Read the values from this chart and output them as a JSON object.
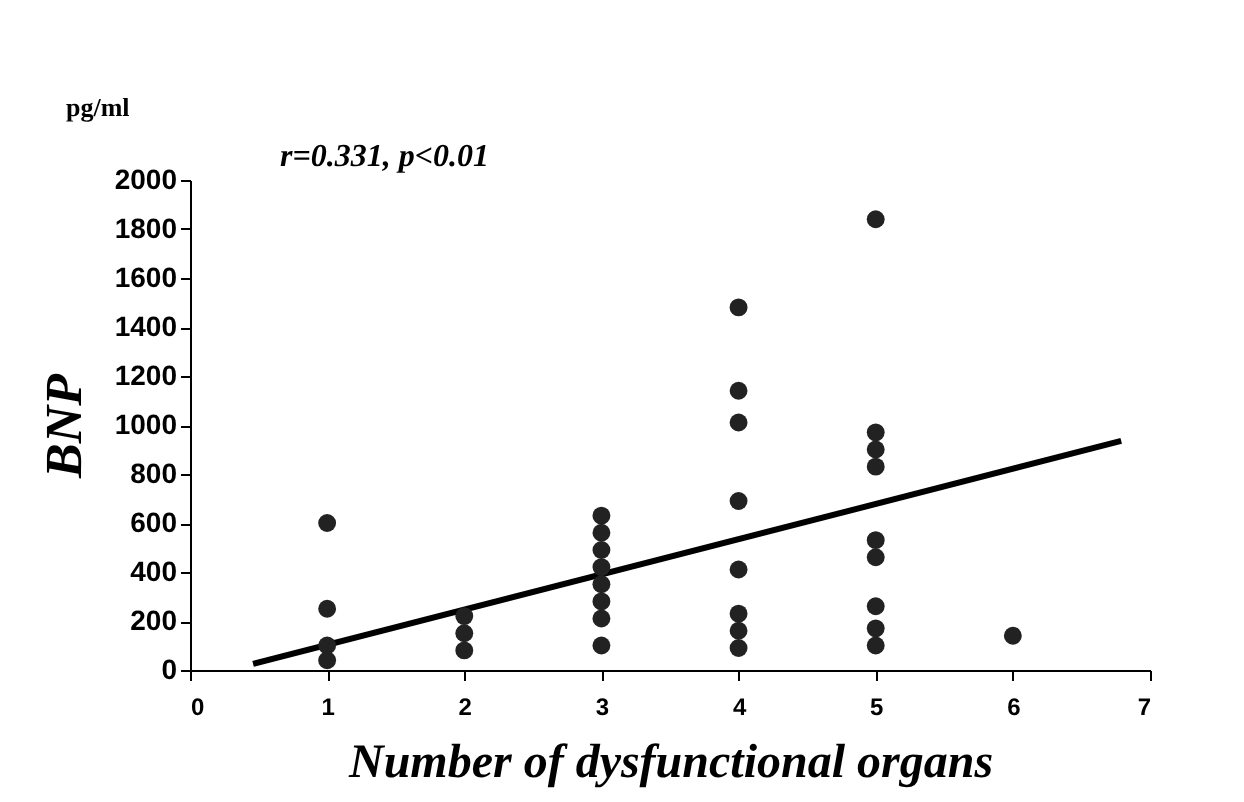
{
  "chart_data": {
    "type": "scatter",
    "xlabel": "Number of dysfunctional organs",
    "ylabel": "BNP",
    "annotations": [
      "pg/ml",
      "r=0.331,  p<0.01"
    ],
    "xlim": [
      0,
      7
    ],
    "xticks": [
      0,
      1,
      2,
      3,
      4,
      5,
      6,
      7
    ],
    "ylim": [
      0,
      2000
    ],
    "yticks": [
      0,
      200,
      400,
      600,
      800,
      1000,
      1200,
      1400,
      1600,
      1800,
      2000
    ],
    "grid": false,
    "series": [
      {
        "color": "#222222",
        "marker": "circle",
        "x": [
          1,
          1,
          1,
          1,
          2,
          2,
          2,
          3,
          3,
          3,
          3,
          3,
          3,
          3,
          3,
          4,
          4,
          4,
          4,
          4,
          4,
          4,
          4,
          5,
          5,
          5,
          5,
          5,
          5,
          5,
          5,
          5,
          6
        ],
        "values": [
          600,
          250,
          100,
          40,
          220,
          150,
          80,
          630,
          560,
          490,
          420,
          350,
          280,
          210,
          100,
          1480,
          1140,
          1010,
          690,
          410,
          230,
          160,
          90,
          1840,
          970,
          900,
          830,
          530,
          460,
          260,
          170,
          100,
          140
        ]
      },
      {
        "type": "line",
        "color": "#000000",
        "x": [
          0.46,
          6.79
        ],
        "values": [
          25,
          935
        ]
      }
    ]
  }
}
